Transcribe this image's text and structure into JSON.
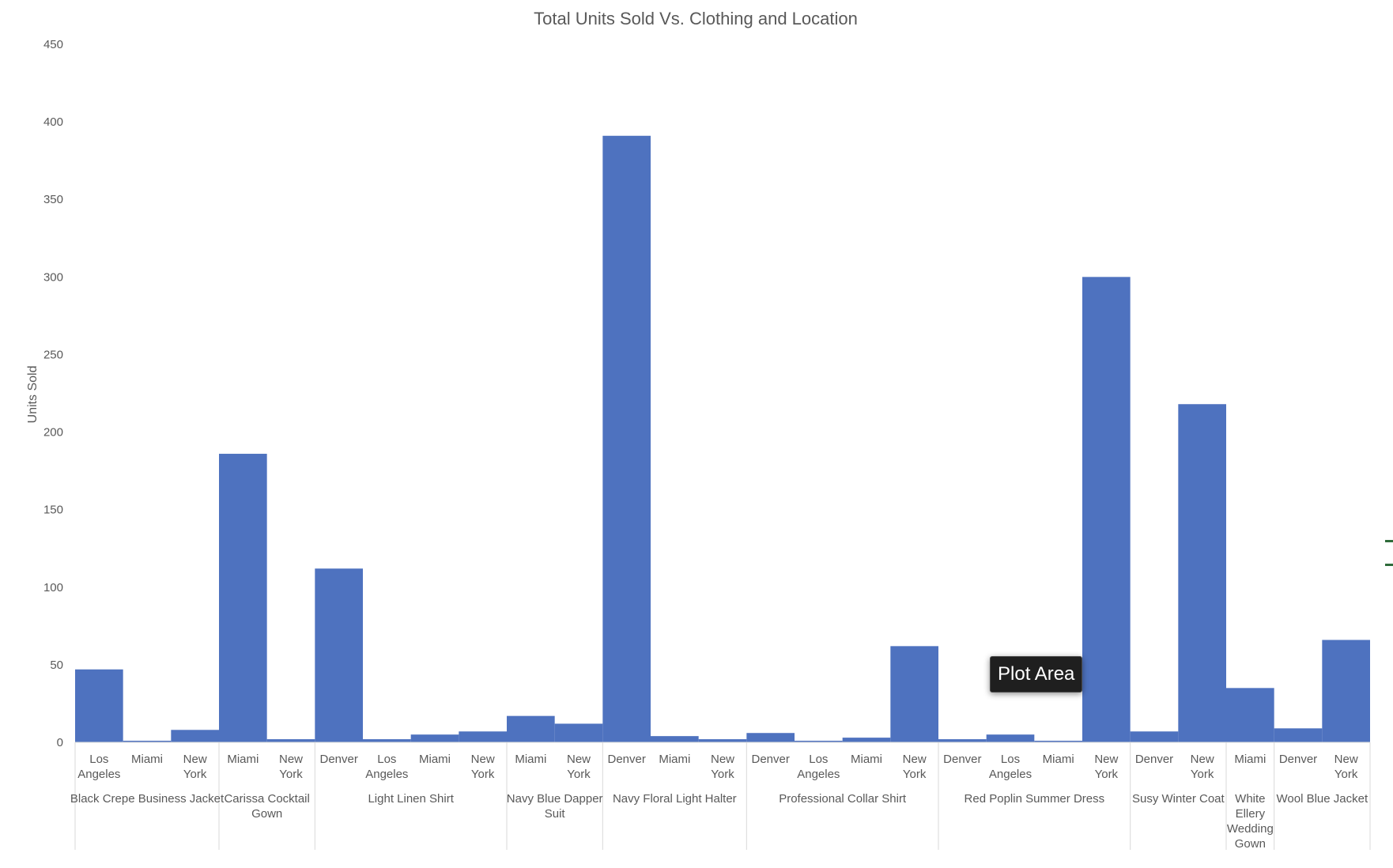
{
  "chart_data": {
    "type": "bar",
    "title": "Total Units Sold Vs. Clothing and Location",
    "ylabel": "Units Sold",
    "xlabel": "",
    "ylim": [
      0,
      450
    ],
    "yticks": [
      0,
      50,
      100,
      150,
      200,
      250,
      300,
      350,
      400,
      450
    ],
    "grid": false,
    "bar_color": "#4e72bf",
    "groups": [
      {
        "name": "Black Crepe Business Jacket",
        "name_lines": [
          "Black Crepe Business Jacket"
        ],
        "items": [
          {
            "location": "Los Angeles",
            "value": 47
          },
          {
            "location": "Miami",
            "value": 1
          },
          {
            "location": "New York",
            "value": 8
          }
        ]
      },
      {
        "name": "Carissa Cocktail Gown",
        "name_lines": [
          "Carissa Cocktail",
          "Gown"
        ],
        "items": [
          {
            "location": "Miami",
            "value": 186
          },
          {
            "location": "New York",
            "value": 2
          }
        ]
      },
      {
        "name": "Light Linen Shirt",
        "name_lines": [
          "Light Linen Shirt"
        ],
        "items": [
          {
            "location": "Denver",
            "value": 112
          },
          {
            "location": "Los Angeles",
            "value": 2
          },
          {
            "location": "Miami",
            "value": 5
          },
          {
            "location": "New York",
            "value": 7
          }
        ]
      },
      {
        "name": "Navy Blue Dapper Suit",
        "name_lines": [
          "Navy Blue Dapper",
          "Suit"
        ],
        "items": [
          {
            "location": "Miami",
            "value": 17
          },
          {
            "location": "New York",
            "value": 12
          }
        ]
      },
      {
        "name": "Navy Floral Light Halter",
        "name_lines": [
          "Navy Floral Light Halter"
        ],
        "items": [
          {
            "location": "Denver",
            "value": 391
          },
          {
            "location": "Miami",
            "value": 4
          },
          {
            "location": "New York",
            "value": 2
          }
        ]
      },
      {
        "name": "Professional Collar Shirt",
        "name_lines": [
          "Professional Collar Shirt"
        ],
        "items": [
          {
            "location": "Denver",
            "value": 6
          },
          {
            "location": "Los Angeles",
            "value": 1
          },
          {
            "location": "Miami",
            "value": 3
          },
          {
            "location": "New York",
            "value": 62
          }
        ]
      },
      {
        "name": "Red Poplin Summer Dress",
        "name_lines": [
          "Red Poplin Summer Dress"
        ],
        "items": [
          {
            "location": "Denver",
            "value": 2
          },
          {
            "location": "Los Angeles",
            "value": 5
          },
          {
            "location": "Miami",
            "value": 1
          },
          {
            "location": "New York",
            "value": 300
          }
        ]
      },
      {
        "name": "Susy Winter Coat",
        "name_lines": [
          "Susy Winter Coat"
        ],
        "items": [
          {
            "location": "Denver",
            "value": 7
          },
          {
            "location": "New York",
            "value": 218
          }
        ]
      },
      {
        "name": "White Ellery Wedding Gown",
        "name_lines": [
          "White",
          "Ellery",
          "Wedding",
          "Gown"
        ],
        "items": [
          {
            "location": "Miami",
            "value": 35
          }
        ]
      },
      {
        "name": "Wool Blue Jacket",
        "name_lines": [
          "Wool Blue Jacket"
        ],
        "items": [
          {
            "location": "Denver",
            "value": 9
          },
          {
            "location": "New York",
            "value": 66
          }
        ]
      }
    ]
  },
  "tooltip": {
    "text": "Plot Area"
  }
}
